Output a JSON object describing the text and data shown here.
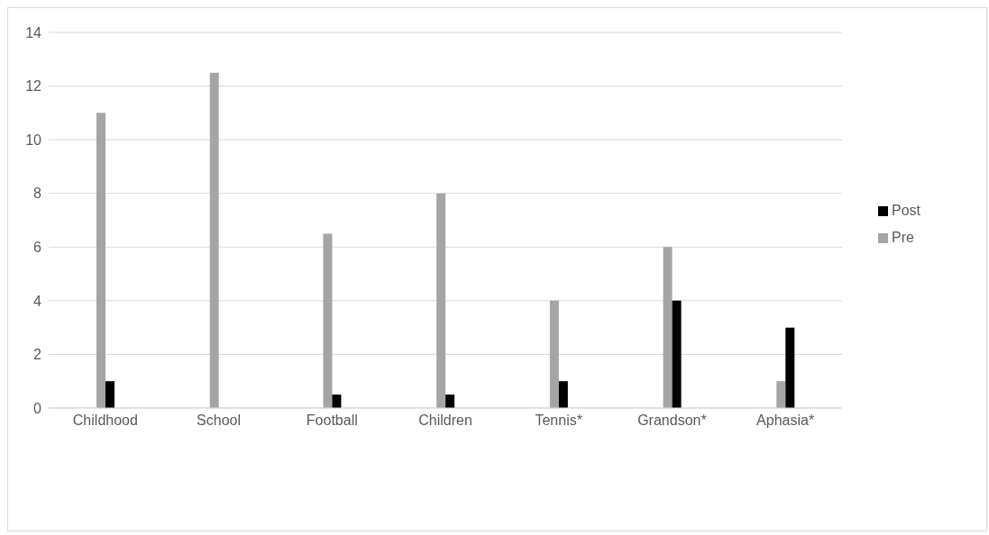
{
  "chart_data": {
    "type": "bar",
    "categories": [
      "Childhood",
      "School",
      "Football",
      "Children",
      "Tennis*",
      "Grandson*",
      "Aphasia*"
    ],
    "series": [
      {
        "name": "Pre",
        "color": "#a5a5a5",
        "values": [
          11,
          12.5,
          6.5,
          8,
          4,
          6,
          1
        ]
      },
      {
        "name": "Post",
        "color": "#000000",
        "values": [
          1,
          0,
          0.5,
          0.5,
          1,
          4,
          3
        ]
      }
    ],
    "ylim": [
      0,
      14
    ],
    "yticks": [
      0,
      2,
      4,
      6,
      8,
      10,
      12,
      14
    ],
    "grid": "y",
    "legend": "right"
  }
}
